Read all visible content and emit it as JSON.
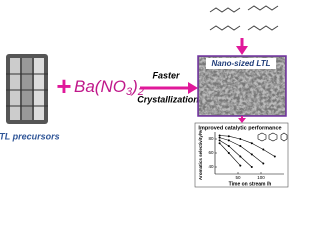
{
  "left": {
    "label": "LTL precursors"
  },
  "reagent": {
    "parts": [
      "Ba(NO",
      "3",
      ")",
      "2"
    ]
  },
  "arrow": {
    "above": "Faster",
    "below": "Crystallization"
  },
  "product": {
    "label": "Nano-sized LTL"
  },
  "inset": {
    "title": "Improved catalytic performance",
    "ylabel": "Aromatics selectivity/%",
    "xlabel": "Time on stream /h",
    "xlim": [
      0,
      150
    ],
    "ylim": [
      30,
      90
    ],
    "xticks": [
      50,
      100
    ],
    "yticks": [
      40,
      60,
      80
    ],
    "series": [
      {
        "color": "#000000",
        "x": [
          10,
          30,
          55,
          80,
          105,
          130
        ],
        "values": [
          85,
          84,
          80,
          74,
          65,
          55
        ]
      },
      {
        "color": "#000000",
        "x": [
          10,
          30,
          55,
          80,
          105
        ],
        "values": [
          82,
          78,
          70,
          58,
          45
        ]
      },
      {
        "color": "#000000",
        "x": [
          10,
          30,
          55,
          80
        ],
        "values": [
          78,
          70,
          55,
          40
        ]
      },
      {
        "color": "#000000",
        "x": [
          10,
          30,
          55
        ],
        "values": [
          74,
          60,
          42
        ]
      }
    ]
  }
}
